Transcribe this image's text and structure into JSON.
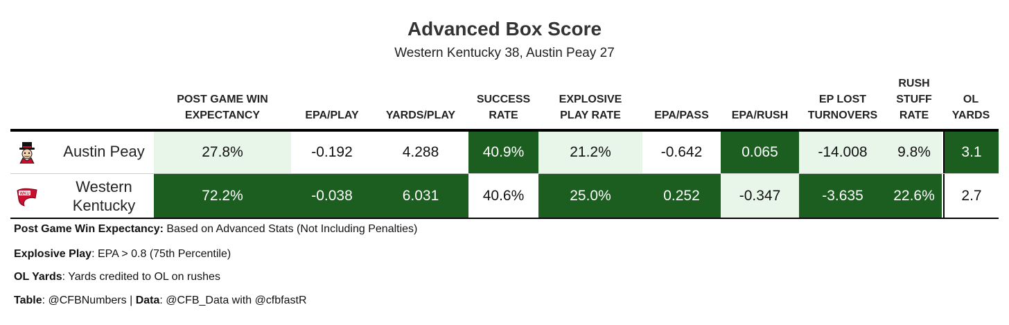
{
  "title": "Advanced Box Score",
  "subtitle": "Western Kentucky 38, Austin Peay 27",
  "headers": [
    "POST GAME WIN\nEXPECTANCY",
    "EPA/PLAY",
    "YARDS/PLAY",
    "SUCCESS\nRATE",
    "EXPLOSIVE\nPLAY RATE",
    "EPA/PASS",
    "EPA/RUSH",
    "EP LOST\nTURNOVERS",
    "RUSH\nSTUFF\nRATE",
    "OL\nYARDS"
  ],
  "rows": [
    {
      "team": "Austin Peay",
      "logo_icon": "austin-peay-governors-logo-icon",
      "values": [
        "27.8%",
        "-0.192",
        "4.288",
        "40.9%",
        "21.2%",
        "-0.642",
        "0.065",
        "-14.008",
        "9.8%",
        "3.1"
      ],
      "shades": [
        "light",
        "white",
        "white",
        "dark",
        "light",
        "white",
        "dark",
        "light",
        "light",
        "dark"
      ]
    },
    {
      "team": "Western\nKentucky",
      "logo_icon": "wku-red-towel-logo-icon",
      "values": [
        "72.2%",
        "-0.038",
        "6.031",
        "40.6%",
        "25.0%",
        "0.252",
        "-0.347",
        "-3.635",
        "22.6%",
        "2.7"
      ],
      "shades": [
        "dark",
        "dark",
        "dark",
        "white",
        "dark",
        "dark",
        "light",
        "dark",
        "dark",
        "white"
      ]
    }
  ],
  "notes": [
    {
      "bold": "Post Game Win Expectancy:",
      "text": " Based on Advanced Stats (Not Including Penalties)"
    },
    {
      "bold": "Explosive Play",
      "text": ": EPA > 0.8 (75th Percentile)"
    },
    {
      "bold": "OL Yards",
      "text": ": Yards credited to OL on rushes"
    },
    {
      "bold": "Table",
      "text": ": @CFBNumbers | ",
      "bold2": "Data",
      "text2": ": @CFB_Data with @cfbfastR"
    }
  ],
  "colors": {
    "dark": "#1b5e20",
    "light": "#e8f5e9",
    "rule": "#000000"
  }
}
